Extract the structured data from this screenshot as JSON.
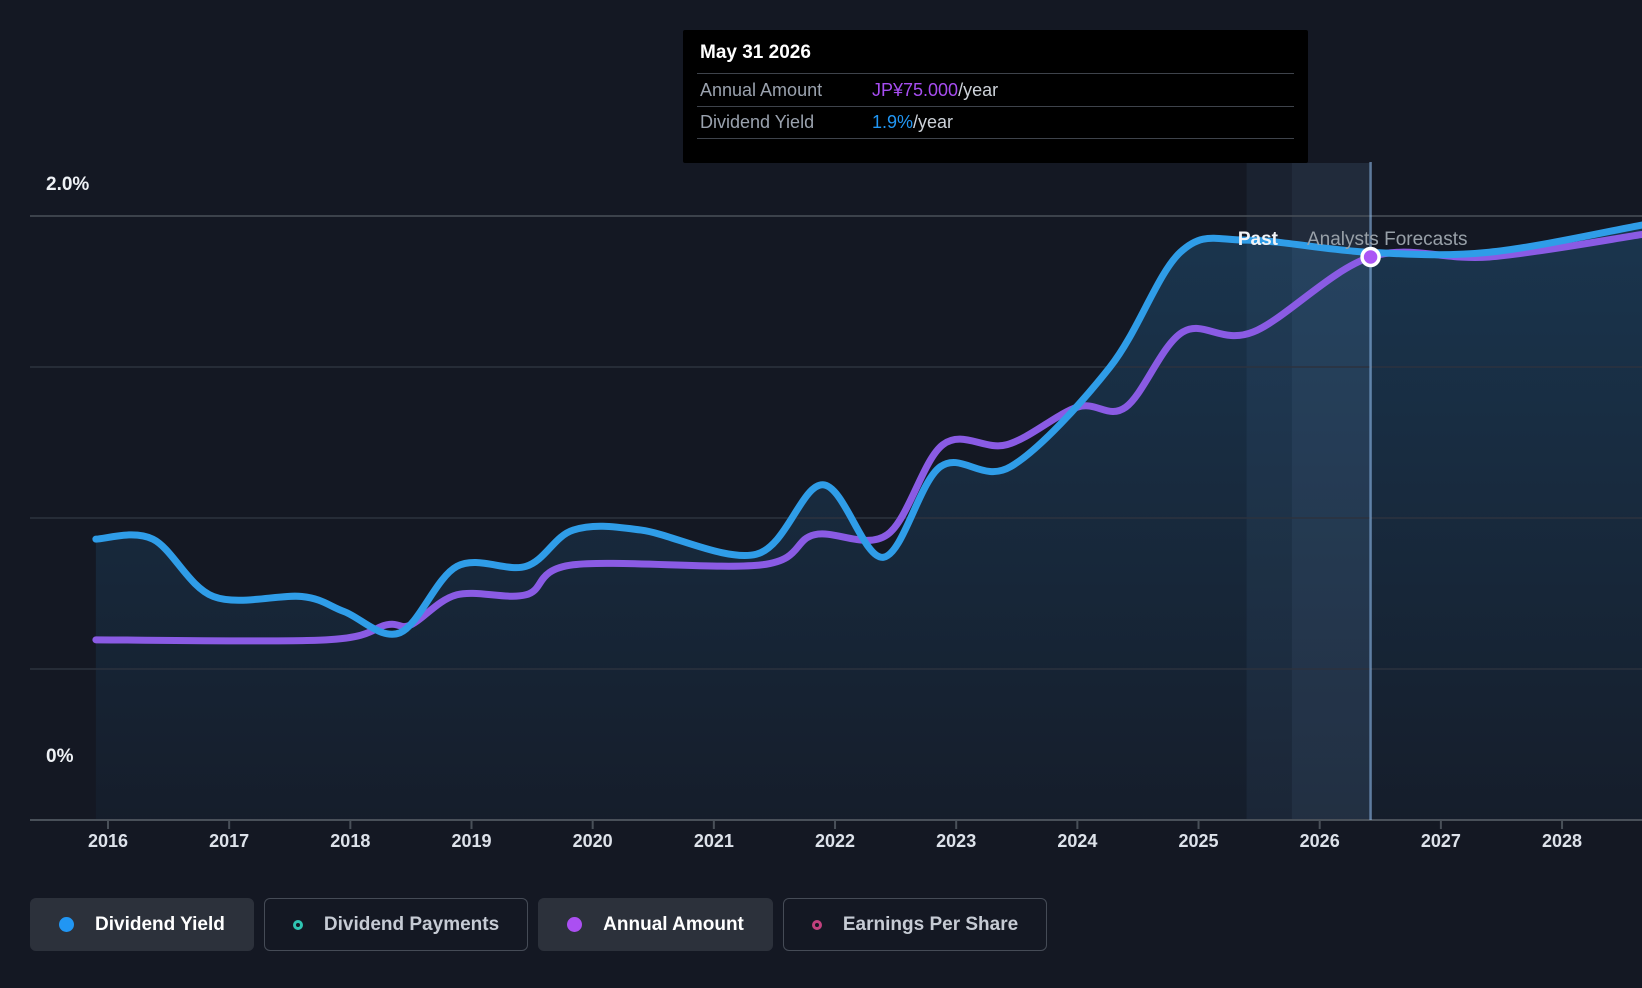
{
  "tooltip": {
    "date": "May 31 2026",
    "rows": [
      {
        "label": "Annual Amount",
        "value": "JP¥75.000",
        "suffix": "/year",
        "value_color": "#a64df0"
      },
      {
        "label": "Dividend Yield",
        "value": "1.9%",
        "suffix": "/year",
        "value_color": "#2196f3"
      }
    ]
  },
  "axes": {
    "y_top_label": "2.0%",
    "y_bottom_label": "0%",
    "x_labels": [
      "2016",
      "2017",
      "2018",
      "2019",
      "2020",
      "2021",
      "2022",
      "2023",
      "2024",
      "2025",
      "2026",
      "2027",
      "2028"
    ]
  },
  "annotations": {
    "past": "Past",
    "forecast": "Analysts Forecasts"
  },
  "legend": [
    {
      "label": "Dividend Yield",
      "marker": "filled",
      "color": "#2196f3",
      "active": true
    },
    {
      "label": "Dividend Payments",
      "marker": "outline",
      "color": "#2fc4b2",
      "active": false
    },
    {
      "label": "Annual Amount",
      "marker": "filled",
      "color": "#ab4ff2",
      "active": true
    },
    {
      "label": "Earnings Per Share",
      "marker": "outline",
      "color": "#c2417e",
      "active": false
    }
  ],
  "colors": {
    "background": "#141823",
    "dividend_yield_line": "#2f9de8",
    "annual_amount_line": "#8a5be4",
    "marker_fill": "#ab55f5"
  },
  "chart_data": {
    "type": "line",
    "title": "Dividend history and forecast",
    "x_unit": "year",
    "x_range": [
      2015.9,
      2028.66
    ],
    "y_axis": {
      "min": 0,
      "max": 2.0,
      "unit": "%",
      "gridline_step": 0.5,
      "labels_shown": [
        "2.0%",
        "0%"
      ]
    },
    "amount_axis": {
      "unit": "JP¥",
      "value_at_marker": 75.0,
      "aligned_yield_pct_at_marker": 1.87
    },
    "past_forecast_divider_x": 2025.77,
    "marker_point": {
      "series": "Annual Amount",
      "x": 2026.42,
      "amount_jpy": 75.0,
      "date": "May 31 2026",
      "dividend_yield_pct": 1.9
    },
    "series": [
      {
        "name": "Dividend Yield",
        "unit": "%",
        "points": [
          [
            2015.9,
            0.93
          ],
          [
            2016.37,
            0.93
          ],
          [
            2016.87,
            0.74
          ],
          [
            2017.6,
            0.74
          ],
          [
            2017.95,
            0.69
          ],
          [
            2018.41,
            0.62
          ],
          [
            2018.88,
            0.84
          ],
          [
            2019.45,
            0.84
          ],
          [
            2019.84,
            0.96
          ],
          [
            2020.4,
            0.96
          ],
          [
            2021.35,
            0.88
          ],
          [
            2021.9,
            1.11
          ],
          [
            2022.4,
            0.87
          ],
          [
            2022.87,
            1.17
          ],
          [
            2023.45,
            1.17
          ],
          [
            2024.27,
            1.5
          ],
          [
            2024.85,
            1.88
          ],
          [
            2025.4,
            1.92
          ],
          [
            2026.4,
            1.88
          ],
          [
            2027.4,
            1.88
          ],
          [
            2028.66,
            1.97
          ]
        ]
      },
      {
        "name": "Annual Amount",
        "unit": "JP¥",
        "points": [
          [
            2015.9,
            24
          ],
          [
            2017.8,
            24
          ],
          [
            2018.3,
            26
          ],
          [
            2018.5,
            26
          ],
          [
            2018.88,
            30
          ],
          [
            2019.45,
            30
          ],
          [
            2019.84,
            34
          ],
          [
            2021.4,
            34
          ],
          [
            2021.83,
            38
          ],
          [
            2022.43,
            38
          ],
          [
            2022.89,
            50
          ],
          [
            2023.42,
            50
          ],
          [
            2024.0,
            55
          ],
          [
            2024.4,
            55
          ],
          [
            2024.87,
            65
          ],
          [
            2025.45,
            65
          ],
          [
            2026.42,
            75
          ],
          [
            2027.4,
            75
          ],
          [
            2028.66,
            78
          ]
        ]
      }
    ],
    "legend_entries": [
      "Dividend Yield",
      "Dividend Payments",
      "Annual Amount",
      "Earnings Per Share"
    ],
    "annotations": [
      "Past",
      "Analysts Forecasts"
    ]
  }
}
